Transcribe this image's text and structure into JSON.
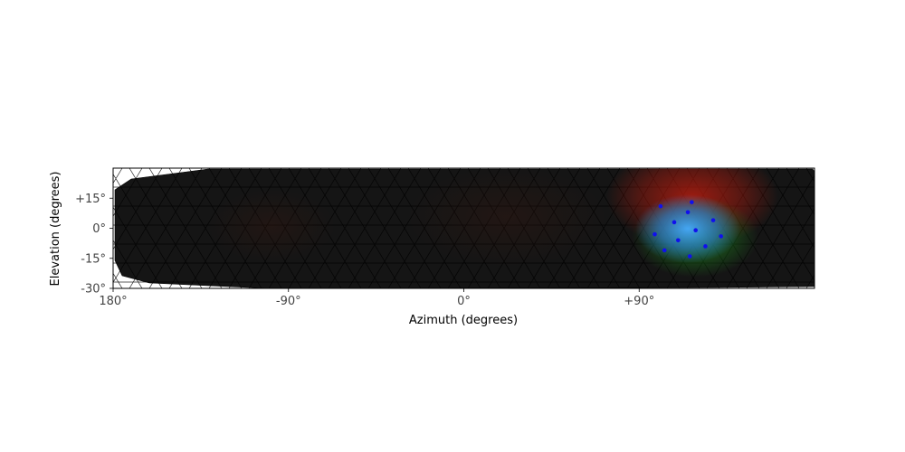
{
  "chart_data": {
    "type": "scatter",
    "title": "",
    "xlabel": "Azimuth (degrees)",
    "ylabel": "Elevation (degrees)",
    "xlim": [
      -180,
      180
    ],
    "ylim": [
      -30,
      30
    ],
    "x_ticks": [
      {
        "value": -180,
        "label": "180°"
      },
      {
        "value": -90,
        "label": "-90°"
      },
      {
        "value": 0,
        "label": "0°"
      },
      {
        "value": 90,
        "label": "+90°"
      }
    ],
    "y_ticks": [
      {
        "value": 15,
        "label": "+15°"
      },
      {
        "value": 0,
        "label": "0°"
      },
      {
        "value": -15,
        "label": "-15°"
      },
      {
        "value": -30,
        "label": "-30°"
      }
    ],
    "grid": false,
    "background_mesh": "dark triangulated surface covering the field of view",
    "colors": {
      "mesh": "#151515",
      "mesh_edge": "#000000",
      "points": "#1010ee",
      "glow_red": "#c81e0f",
      "glow_green": "#1e8c1e",
      "glow_blue": "#2d96ff"
    },
    "series": [
      {
        "points": [
          {
            "x": 101,
            "y": 11
          },
          {
            "x": 117,
            "y": 13
          },
          {
            "x": 115,
            "y": 8
          },
          {
            "x": 108,
            "y": 3
          },
          {
            "x": 128,
            "y": 4
          },
          {
            "x": 119,
            "y": -1
          },
          {
            "x": 98,
            "y": -3
          },
          {
            "x": 132,
            "y": -4
          },
          {
            "x": 110,
            "y": -6
          },
          {
            "x": 124,
            "y": -9
          },
          {
            "x": 103,
            "y": -11
          },
          {
            "x": 116,
            "y": -14
          }
        ]
      }
    ]
  }
}
